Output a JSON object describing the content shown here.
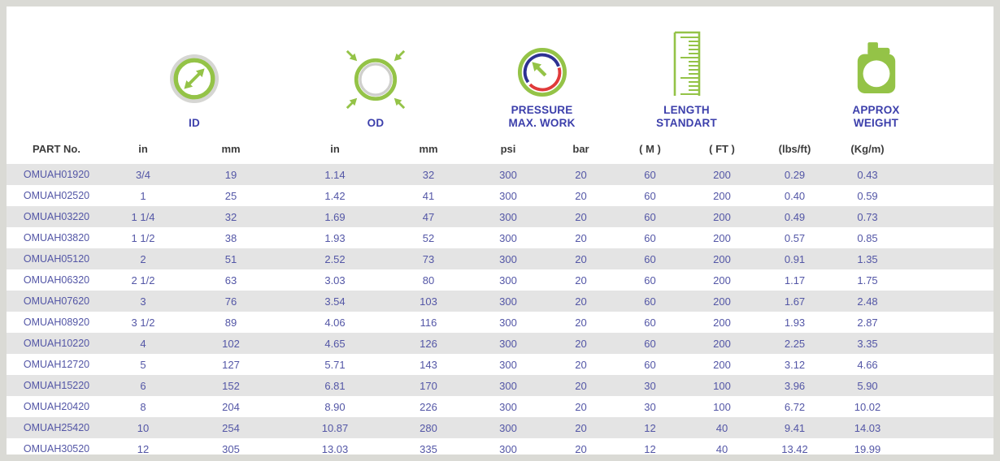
{
  "colors": {
    "accent_green": "#94c347",
    "label_blue": "#3c3fab",
    "data_blue": "#5356a6",
    "row_stripe": "#e4e4e4",
    "frame_gray": "#dadad5",
    "icon_gray": "#d6d6d3",
    "gauge_blue": "#2e3192",
    "gauge_red": "#e03a3a"
  },
  "header": {
    "id": {
      "label": "ID"
    },
    "od": {
      "label": "OD"
    },
    "pressure": {
      "line1": "PRESSURE",
      "line2": "MAX. WORK"
    },
    "length": {
      "line1": "LENGTH",
      "line2": "STANDART"
    },
    "weight": {
      "line1": "APPROX",
      "line2": "WEIGHT"
    }
  },
  "table": {
    "columns": [
      "PART No.",
      "in",
      "mm",
      "in",
      "mm",
      "psi",
      "bar",
      "( M )",
      "( FT )",
      "(lbs/ft)",
      "(Kg/m)"
    ],
    "rows": [
      [
        "OMUAH01920",
        "3/4",
        "19",
        "1.14",
        "32",
        "300",
        "20",
        "60",
        "200",
        "0.29",
        "0.43"
      ],
      [
        "OMUAH02520",
        "1",
        "25",
        "1.42",
        "41",
        "300",
        "20",
        "60",
        "200",
        "0.40",
        "0.59"
      ],
      [
        "OMUAH03220",
        "1 1/4",
        "32",
        "1.69",
        "47",
        "300",
        "20",
        "60",
        "200",
        "0.49",
        "0.73"
      ],
      [
        "OMUAH03820",
        "1 1/2",
        "38",
        "1.93",
        "52",
        "300",
        "20",
        "60",
        "200",
        "0.57",
        "0.85"
      ],
      [
        "OMUAH05120",
        "2",
        "51",
        "2.52",
        "73",
        "300",
        "20",
        "60",
        "200",
        "0.91",
        "1.35"
      ],
      [
        "OMUAH06320",
        "2 1/2",
        "63",
        "3.03",
        "80",
        "300",
        "20",
        "60",
        "200",
        "1.17",
        "1.75"
      ],
      [
        "OMUAH07620",
        "3",
        "76",
        "3.54",
        "103",
        "300",
        "20",
        "60",
        "200",
        "1.67",
        "2.48"
      ],
      [
        "OMUAH08920",
        "3 1/2",
        "89",
        "4.06",
        "116",
        "300",
        "20",
        "60",
        "200",
        "1.93",
        "2.87"
      ],
      [
        "OMUAH10220",
        "4",
        "102",
        "4.65",
        "126",
        "300",
        "20",
        "60",
        "200",
        "2.25",
        "3.35"
      ],
      [
        "OMUAH12720",
        "5",
        "127",
        "5.71",
        "143",
        "300",
        "20",
        "60",
        "200",
        "3.12",
        "4.66"
      ],
      [
        "OMUAH15220",
        "6",
        "152",
        "6.81",
        "170",
        "300",
        "20",
        "30",
        "100",
        "3.96",
        "5.90"
      ],
      [
        "OMUAH20420",
        "8",
        "204",
        "8.90",
        "226",
        "300",
        "20",
        "30",
        "100",
        "6.72",
        "10.02"
      ],
      [
        "OMUAH25420",
        "10",
        "254",
        "10.87",
        "280",
        "300",
        "20",
        "12",
        "40",
        "9.41",
        "14.03"
      ],
      [
        "OMUAH30520",
        "12",
        "305",
        "13.03",
        "335",
        "300",
        "20",
        "12",
        "40",
        "13.42",
        "19.99"
      ]
    ]
  }
}
